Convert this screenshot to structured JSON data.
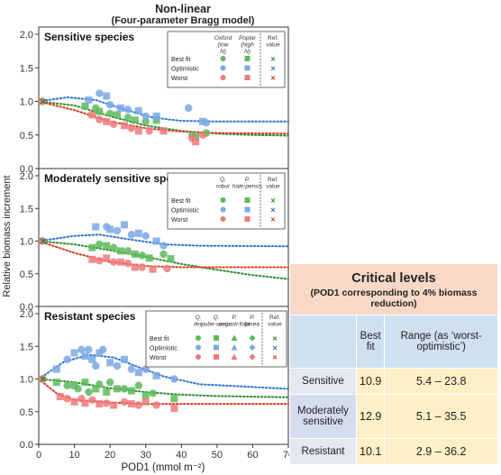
{
  "figure": {
    "title_line1": "Non-linear",
    "title_line2": "(Four-parameter Bragg model)",
    "ylabel": "Relative biomass increment",
    "xlabel": "POD1 (mmol m⁻²)",
    "x_ticks": [
      "0",
      "10",
      "20",
      "30",
      "40",
      "50",
      "60",
      "70"
    ],
    "y_ticks": [
      "0.0",
      "0.5",
      "1.0",
      "1.5",
      "2.0"
    ]
  },
  "colors": {
    "best_fit": "#5cb85c",
    "optimistic": "#7aa7e6",
    "worst": "#ec7a7a",
    "best_fit_curve": "#2e8b2e",
    "optimistic_curve": "#2c73d2",
    "worst_curve": "#d9381e",
    "ref_best": "#1f8a1f",
    "ref_opt": "#2c5fd9",
    "ref_worst": "#d9381e",
    "table_header": "#f8d9c8",
    "table_colhdr": "#cfe0f1",
    "table_values": "#fdf0c6"
  },
  "chart_data": [
    {
      "type": "scatter",
      "title": "Sensitive species",
      "xlim": [
        0,
        70
      ],
      "ylim": [
        0,
        2.0
      ],
      "legend": {
        "rows": [
          "Best fit",
          "Optimistic",
          "Worst"
        ],
        "col_headers": [
          "Oxford (low N)",
          "Poplar (high N)"
        ],
        "ref_header": "Ref. value",
        "placement": "top-right"
      },
      "series": [
        {
          "name": "Best fit",
          "points": [
            [
              1,
              1.0
            ],
            [
              13,
              0.93
            ],
            [
              16,
              0.9
            ],
            [
              17,
              0.85
            ],
            [
              20,
              0.82
            ],
            [
              22,
              0.8
            ],
            [
              25,
              0.76
            ],
            [
              27,
              0.72
            ],
            [
              30,
              0.7
            ],
            [
              33,
              0.72
            ],
            [
              43,
              0.5
            ],
            [
              44,
              0.47
            ],
            [
              47,
              0.53
            ]
          ],
          "curve": [
            [
              0,
              1.0
            ],
            [
              10,
              0.94
            ],
            [
              20,
              0.78
            ],
            [
              30,
              0.64
            ],
            [
              40,
              0.56
            ],
            [
              50,
              0.52
            ],
            [
              60,
              0.5
            ],
            [
              70,
              0.49
            ]
          ]
        },
        {
          "name": "Optimistic",
          "points": [
            [
              1,
              1.0
            ],
            [
              14,
              1.02
            ],
            [
              17,
              1.12
            ],
            [
              19,
              1.08
            ],
            [
              20,
              0.95
            ],
            [
              23,
              0.9
            ],
            [
              25,
              0.88
            ],
            [
              28,
              0.86
            ],
            [
              30,
              0.78
            ],
            [
              33,
              0.78
            ],
            [
              42,
              0.9
            ],
            [
              46,
              0.7
            ],
            [
              47,
              0.68
            ]
          ],
          "curve": [
            [
              0,
              1.0
            ],
            [
              8,
              1.06
            ],
            [
              16,
              1.02
            ],
            [
              24,
              0.88
            ],
            [
              32,
              0.76
            ],
            [
              40,
              0.71
            ],
            [
              50,
              0.7
            ],
            [
              70,
              0.7
            ]
          ]
        },
        {
          "name": "Worst",
          "points": [
            [
              1,
              1.0
            ],
            [
              15,
              0.8
            ],
            [
              17,
              0.73
            ],
            [
              19,
              0.7
            ],
            [
              21,
              0.66
            ],
            [
              24,
              0.64
            ],
            [
              26,
              0.6
            ],
            [
              28,
              0.56
            ],
            [
              31,
              0.56
            ],
            [
              35,
              0.56
            ],
            [
              43,
              0.45
            ],
            [
              44,
              0.4
            ],
            [
              46,
              0.5
            ]
          ],
          "curve": [
            [
              0,
              1.0
            ],
            [
              10,
              0.87
            ],
            [
              20,
              0.7
            ],
            [
              30,
              0.6
            ],
            [
              40,
              0.55
            ],
            [
              50,
              0.53
            ],
            [
              70,
              0.52
            ]
          ]
        }
      ]
    },
    {
      "type": "scatter",
      "title": "Moderately sensitive species",
      "xlim": [
        0,
        70
      ],
      "ylim": [
        0,
        2.0
      ],
      "legend": {
        "rows": [
          "Best fit",
          "Optimistic",
          "Worst"
        ],
        "col_headers": [
          "Q. robur",
          "P. hale-pensis"
        ],
        "ref_header": "Ref. value",
        "placement": "top-right"
      },
      "series": [
        {
          "name": "Best fit",
          "points": [
            [
              1,
              1.0
            ],
            [
              15,
              0.9
            ],
            [
              17,
              0.95
            ],
            [
              19,
              0.93
            ],
            [
              21,
              0.9
            ],
            [
              23,
              0.85
            ],
            [
              25,
              0.85
            ],
            [
              27,
              0.8
            ],
            [
              29,
              0.78
            ],
            [
              31,
              0.74
            ],
            [
              35,
              0.8
            ],
            [
              37,
              0.73
            ]
          ],
          "curve": [
            [
              0,
              1.0
            ],
            [
              10,
              0.95
            ],
            [
              20,
              0.86
            ],
            [
              30,
              0.76
            ],
            [
              40,
              0.65
            ],
            [
              50,
              0.56
            ],
            [
              60,
              0.48
            ],
            [
              70,
              0.42
            ]
          ]
        },
        {
          "name": "Optimistic",
          "points": [
            [
              1,
              1.0
            ],
            [
              16,
              1.22
            ],
            [
              19,
              1.22
            ],
            [
              20,
              1.18
            ],
            [
              22,
              1.16
            ],
            [
              24,
              1.25
            ],
            [
              26,
              1.1
            ],
            [
              28,
              1.12
            ],
            [
              30,
              1.08
            ],
            [
              33,
              1.0
            ],
            [
              35,
              0.93
            ]
          ],
          "curve": [
            [
              0,
              1.0
            ],
            [
              10,
              1.08
            ],
            [
              17,
              1.1
            ],
            [
              25,
              1.03
            ],
            [
              35,
              0.95
            ],
            [
              45,
              0.93
            ],
            [
              70,
              0.92
            ]
          ]
        },
        {
          "name": "Worst",
          "points": [
            [
              1,
              1.0
            ],
            [
              15,
              0.72
            ],
            [
              17,
              0.7
            ],
            [
              19,
              0.74
            ],
            [
              21,
              0.68
            ],
            [
              23,
              0.68
            ],
            [
              25,
              0.66
            ],
            [
              27,
              0.6
            ],
            [
              29,
              0.6
            ],
            [
              32,
              0.57
            ],
            [
              36,
              0.58
            ]
          ],
          "curve": [
            [
              0,
              1.0
            ],
            [
              10,
              0.82
            ],
            [
              20,
              0.68
            ],
            [
              30,
              0.62
            ],
            [
              40,
              0.6
            ],
            [
              70,
              0.6
            ]
          ]
        }
      ]
    },
    {
      "type": "scatter",
      "title": "Resistant species",
      "xlim": [
        0,
        70
      ],
      "ylim": [
        0,
        2.0
      ],
      "legend": {
        "rows": [
          "Best fit",
          "Optimistic",
          "Worst"
        ],
        "col_headers": [
          "Q. ilex",
          "Q. pube-scens",
          "P. angusti-folia",
          "P. pinea"
        ],
        "ref_header": "Ref. value",
        "placement": "top-right"
      },
      "series": [
        {
          "name": "Best fit",
          "points": [
            [
              1,
              1.0
            ],
            [
              5,
              0.95
            ],
            [
              8,
              0.9
            ],
            [
              10,
              0.9
            ],
            [
              11,
              0.85
            ],
            [
              13,
              0.95
            ],
            [
              14,
              0.8
            ],
            [
              16,
              0.85
            ],
            [
              17,
              0.92
            ],
            [
              19,
              0.8
            ],
            [
              20,
              0.95
            ],
            [
              22,
              0.85
            ],
            [
              24,
              0.85
            ],
            [
              26,
              0.82
            ],
            [
              28,
              0.9
            ],
            [
              30,
              0.75
            ],
            [
              32,
              0.78
            ],
            [
              38,
              0.7
            ]
          ],
          "curve": [
            [
              0,
              1.0
            ],
            [
              10,
              0.95
            ],
            [
              20,
              0.86
            ],
            [
              30,
              0.8
            ],
            [
              40,
              0.76
            ],
            [
              50,
              0.74
            ],
            [
              70,
              0.72
            ]
          ]
        },
        {
          "name": "Optimistic",
          "points": [
            [
              1,
              1.0
            ],
            [
              5,
              1.15
            ],
            [
              8,
              1.3
            ],
            [
              10,
              1.4
            ],
            [
              12,
              1.45
            ],
            [
              13,
              1.35
            ],
            [
              14,
              1.45
            ],
            [
              15,
              1.3
            ],
            [
              16,
              1.2
            ],
            [
              17,
              1.4
            ],
            [
              18,
              1.45
            ],
            [
              20,
              1.25
            ],
            [
              22,
              1.2
            ],
            [
              24,
              1.3
            ],
            [
              26,
              1.15
            ],
            [
              28,
              1.1
            ],
            [
              30,
              1.15
            ],
            [
              33,
              1.05
            ],
            [
              38,
              1.0
            ]
          ],
          "curve": [
            [
              0,
              1.0
            ],
            [
              7,
              1.26
            ],
            [
              14,
              1.37
            ],
            [
              21,
              1.33
            ],
            [
              28,
              1.18
            ],
            [
              35,
              1.04
            ],
            [
              45,
              0.92
            ],
            [
              70,
              0.85
            ]
          ]
        },
        {
          "name": "Worst",
          "points": [
            [
              1,
              1.0
            ],
            [
              6,
              0.73
            ],
            [
              8,
              0.7
            ],
            [
              10,
              0.65
            ],
            [
              12,
              0.7
            ],
            [
              13,
              0.63
            ],
            [
              15,
              0.68
            ],
            [
              17,
              0.62
            ],
            [
              19,
              0.63
            ],
            [
              21,
              0.6
            ],
            [
              24,
              0.65
            ],
            [
              26,
              0.62
            ],
            [
              28,
              0.6
            ],
            [
              30,
              0.65
            ],
            [
              33,
              0.6
            ],
            [
              38,
              0.55
            ]
          ],
          "curve": [
            [
              0,
              1.0
            ],
            [
              5,
              0.78
            ],
            [
              10,
              0.68
            ],
            [
              20,
              0.64
            ],
            [
              30,
              0.62
            ],
            [
              40,
              0.62
            ],
            [
              70,
              0.62
            ]
          ]
        }
      ]
    }
  ],
  "table": {
    "title": "Critical levels",
    "subtitle": "(POD1 corresponding to 4% biomass reduction)",
    "col_best": "Best fit",
    "col_range": "Range (as ‘worst-optimistic’)",
    "rows": [
      {
        "label": "Sensitive",
        "best": "10.9",
        "range": "5.4 – 23.8"
      },
      {
        "label": "Moderately sensitive",
        "best": "12.9",
        "range": "5.1 – 35.5"
      },
      {
        "label": "Resistant",
        "best": "10.1",
        "range": "2.9 – 36.2"
      }
    ]
  }
}
